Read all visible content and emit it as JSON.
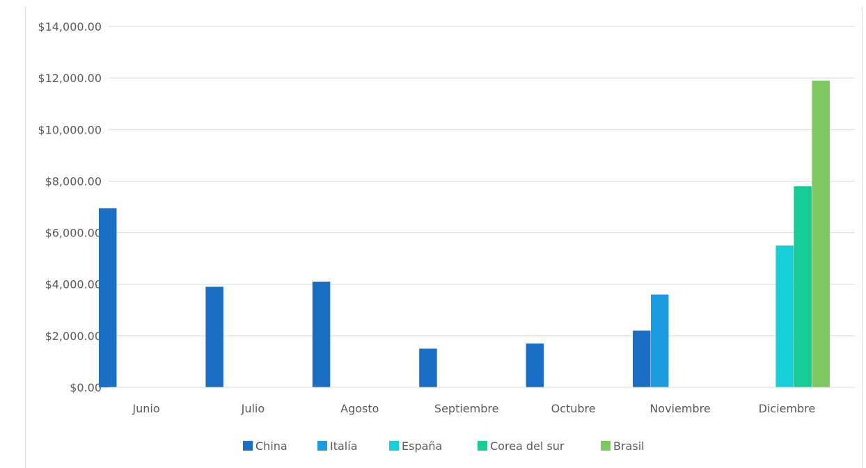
{
  "header": {
    "title_cropped": ""
  },
  "chart_data": {
    "type": "bar",
    "title": "",
    "xlabel": "",
    "ylabel": "",
    "categories": [
      "Junio",
      "Julio",
      "Agosto",
      "Septiembre",
      "Octubre",
      "Noviembre",
      "Diciembre"
    ],
    "y_tick_labels": [
      "$0.00",
      "$2,000.00",
      "$4,000.00",
      "$6,000.00",
      "$8,000.00",
      "$10,000.00",
      "$12,000.00",
      "$14,000.00"
    ],
    "ylim": [
      0,
      14000
    ],
    "y_step": 2000,
    "grid": true,
    "legend_position": "bottom",
    "series": [
      {
        "name": "China",
        "color": "#1a6fc4",
        "values": [
          6950,
          3900,
          4100,
          1500,
          1700,
          2200,
          0
        ]
      },
      {
        "name": "Italía",
        "color": "#1b9be0",
        "values": [
          0,
          0,
          0,
          0,
          0,
          3600,
          0
        ]
      },
      {
        "name": "España",
        "color": "#17cfd9",
        "values": [
          0,
          0,
          0,
          0,
          0,
          0,
          5500
        ]
      },
      {
        "name": "Corea del sur",
        "color": "#15cc96",
        "values": [
          0,
          0,
          0,
          0,
          0,
          0,
          7800
        ]
      },
      {
        "name": "Brasil",
        "color": "#7ec862",
        "values": [
          0,
          0,
          0,
          0,
          0,
          0,
          11900
        ]
      }
    ]
  }
}
